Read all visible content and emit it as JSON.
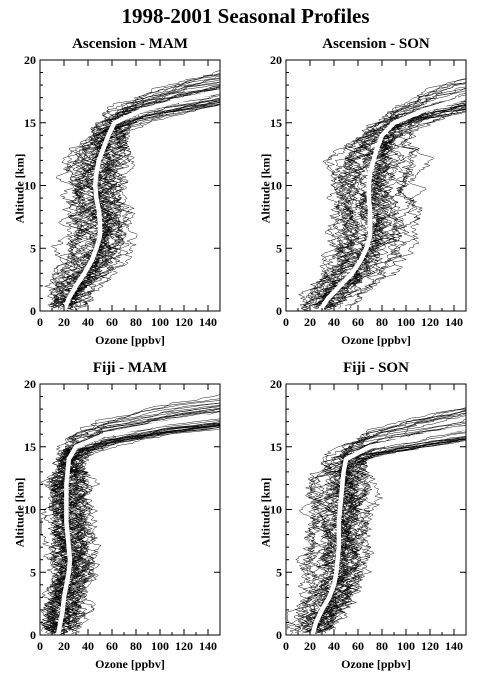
{
  "figure_title": "1998-2001 Seasonal Profiles",
  "colors": {
    "profiles": "#000000",
    "mean": "#ffffff",
    "background": "#ffffff"
  },
  "chart_data": [
    {
      "type": "line",
      "title": "Ascension - MAM",
      "xlabel": "Ozone [ppbv]",
      "ylabel": "Altitude [km]",
      "xlim": [
        0,
        150
      ],
      "ylim": [
        0,
        20
      ],
      "xticks": [
        0,
        20,
        40,
        60,
        80,
        100,
        120,
        140
      ],
      "yticks": [
        0,
        5,
        10,
        15,
        20
      ],
      "individual_profiles": 40,
      "mean_profile": {
        "altitude": [
          0,
          1,
          2,
          3,
          4,
          5,
          6,
          7,
          8,
          9,
          10,
          11,
          12,
          13,
          14,
          15,
          16,
          17,
          17.5
        ],
        "ozone": [
          20,
          24,
          30,
          37,
          43,
          47,
          50,
          50,
          49,
          47,
          46,
          47,
          49,
          53,
          57,
          62,
          85,
          125,
          150
        ]
      }
    },
    {
      "type": "line",
      "title": "Ascension - SON",
      "xlabel": "Ozone [ppbv]",
      "ylabel": "Altitude [km]",
      "xlim": [
        0,
        150
      ],
      "ylim": [
        0,
        20
      ],
      "xticks": [
        0,
        20,
        40,
        60,
        80,
        100,
        120,
        140
      ],
      "yticks": [
        0,
        5,
        10,
        15,
        20
      ],
      "individual_profiles": 40,
      "mean_profile": {
        "altitude": [
          0,
          1,
          2,
          3,
          4,
          5,
          6,
          7,
          8,
          9,
          10,
          11,
          12,
          13,
          14,
          15,
          16,
          17
        ],
        "ozone": [
          28,
          35,
          45,
          55,
          62,
          67,
          70,
          70,
          70,
          69,
          69,
          70,
          73,
          76,
          80,
          90,
          115,
          150
        ]
      }
    },
    {
      "type": "line",
      "title": "Fiji - MAM",
      "xlabel": "Ozone [ppbv]",
      "ylabel": "Altitude [km]",
      "xlim": [
        0,
        150
      ],
      "ylim": [
        0,
        20
      ],
      "xticks": [
        0,
        20,
        40,
        60,
        80,
        100,
        120,
        140
      ],
      "yticks": [
        0,
        5,
        10,
        15,
        20
      ],
      "individual_profiles": 40,
      "mean_profile": {
        "altitude": [
          0,
          1,
          2,
          3,
          4,
          5,
          6,
          7,
          8,
          9,
          10,
          11,
          12,
          13,
          14,
          15,
          16,
          17,
          17.5
        ],
        "ozone": [
          15,
          17,
          19,
          20,
          22,
          24,
          25,
          24,
          23,
          22,
          22,
          22,
          22,
          23,
          24,
          30,
          55,
          110,
          150
        ]
      }
    },
    {
      "type": "line",
      "title": "Fiji - SON",
      "xlabel": "Ozone [ppbv]",
      "ylabel": "Altitude [km]",
      "xlim": [
        0,
        150
      ],
      "ylim": [
        0,
        20
      ],
      "xticks": [
        0,
        20,
        40,
        60,
        80,
        100,
        120,
        140
      ],
      "yticks": [
        0,
        5,
        10,
        15,
        20
      ],
      "individual_profiles": 40,
      "mean_profile": {
        "altitude": [
          0,
          1,
          2,
          3,
          4,
          5,
          6,
          7,
          8,
          9,
          10,
          11,
          12,
          13,
          14,
          15,
          16,
          16.5
        ],
        "ozone": [
          22,
          25,
          30,
          36,
          40,
          42,
          43,
          44,
          44,
          44,
          45,
          46,
          47,
          48,
          50,
          70,
          120,
          150
        ]
      }
    }
  ]
}
